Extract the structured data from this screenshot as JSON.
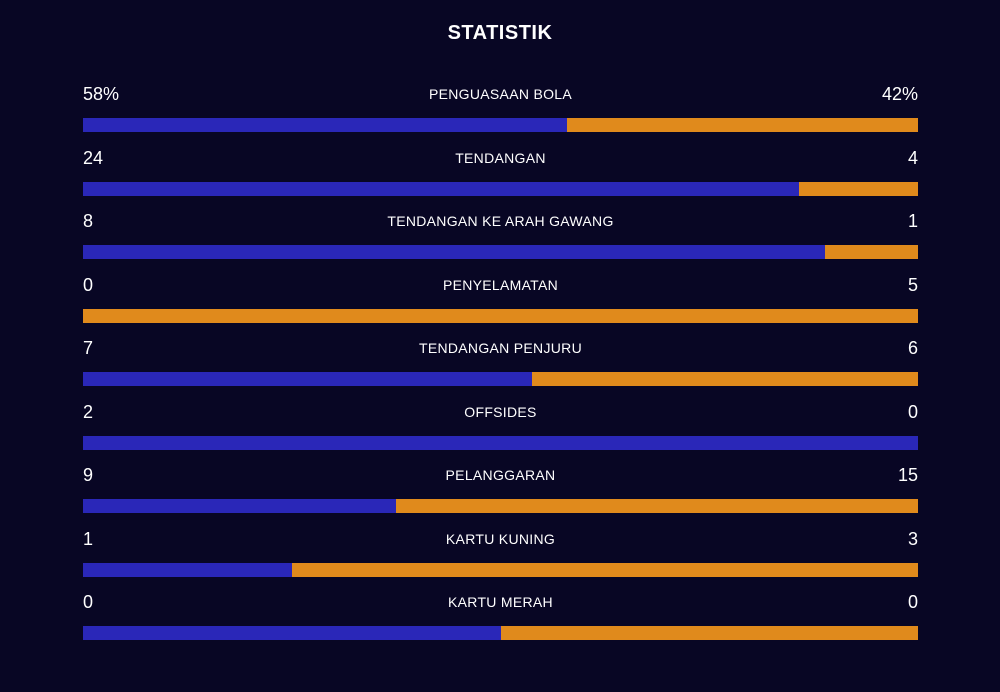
{
  "title": "STATISTIK",
  "colors": {
    "background": "#080624",
    "home": "#2a27b8",
    "away": "#e08a1c"
  },
  "stats": [
    {
      "label": "PENGUASAAN BOLA",
      "home": "58%",
      "away": "42%",
      "home_share": 0.58
    },
    {
      "label": "TENDANGAN",
      "home": "24",
      "away": "4",
      "home_share": 0.857
    },
    {
      "label": "TENDANGAN KE ARAH GAWANG",
      "home": "8",
      "away": "1",
      "home_share": 0.889
    },
    {
      "label": "PENYELAMATAN",
      "home": "0",
      "away": "5",
      "home_share": 0.0
    },
    {
      "label": "TENDANGAN PENJURU",
      "home": "7",
      "away": "6",
      "home_share": 0.538
    },
    {
      "label": "OFFSIDES",
      "home": "2",
      "away": "0",
      "home_share": 1.0
    },
    {
      "label": "PELANGGARAN",
      "home": "9",
      "away": "15",
      "home_share": 0.375
    },
    {
      "label": "KARTU KUNING",
      "home": "1",
      "away": "3",
      "home_share": 0.25
    },
    {
      "label": "KARTU MERAH",
      "home": "0",
      "away": "0",
      "home_share": 0.5
    }
  ]
}
